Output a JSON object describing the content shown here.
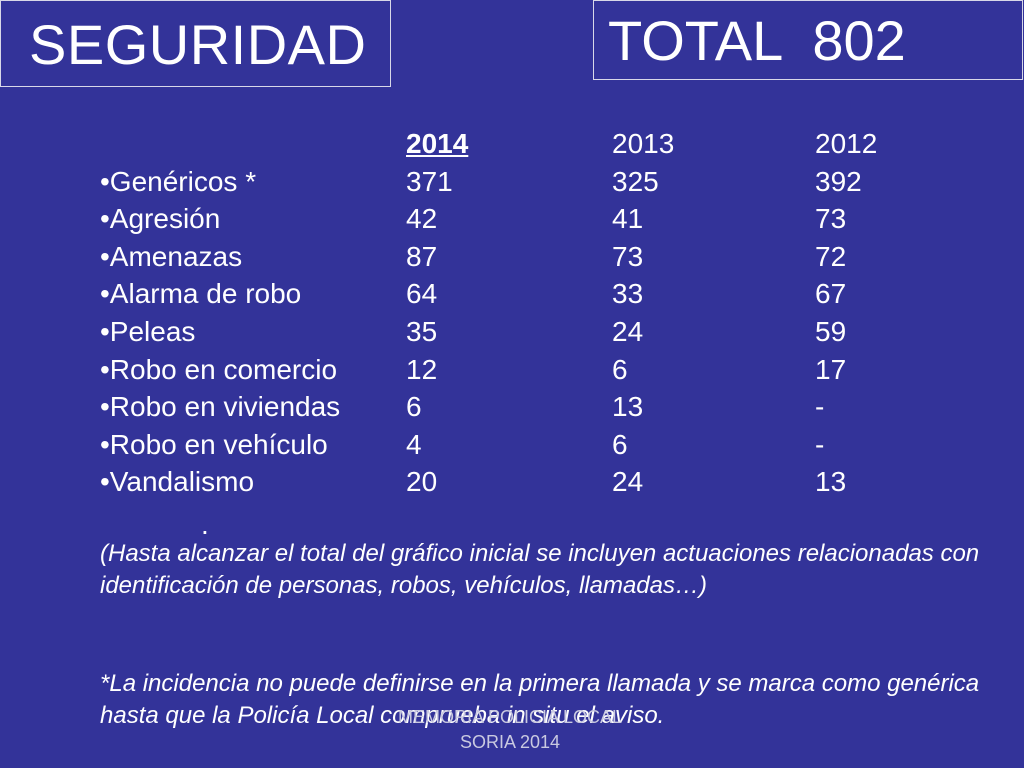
{
  "title_left": "SEGURIDAD",
  "title_right": "TOTAL  802",
  "table": {
    "headers": [
      "",
      "2014",
      "2013",
      "2012"
    ],
    "rows": [
      [
        "•Genéricos *",
        "371",
        "325",
        "392"
      ],
      [
        "•Agresión",
        "42",
        "41",
        "73"
      ],
      [
        "•Amenazas",
        "87",
        "73",
        "72"
      ],
      [
        "•Alarma de robo",
        "64",
        "33",
        "67"
      ],
      [
        "•Peleas",
        "35",
        "24",
        "59"
      ],
      [
        "•Robo en comercio",
        "12",
        "6",
        "17"
      ],
      [
        "•Robo en viviendas",
        "6",
        "13",
        "-"
      ],
      [
        "•Robo en vehículo",
        "4",
        "6",
        "-"
      ],
      [
        "•Vandalismo",
        "20",
        "24",
        "13"
      ]
    ]
  },
  "dot": ".",
  "note1": "(Hasta alcanzar el total del gráfico inicial se incluyen actuaciones relacionadas con  identificación de personas, robos, vehículos, llamadas…)",
  "note2": "*La incidencia no puede definirse en la primera llamada y se marca como genérica hasta que la Policía Local comprueba in situ el aviso.",
  "footer_line1": "MEMORIA POLICIA LOCAL",
  "footer_line2": "SORIA 2014",
  "colors": {
    "background": "#333399",
    "text": "#ffffff",
    "border": "#d8d8e8"
  }
}
